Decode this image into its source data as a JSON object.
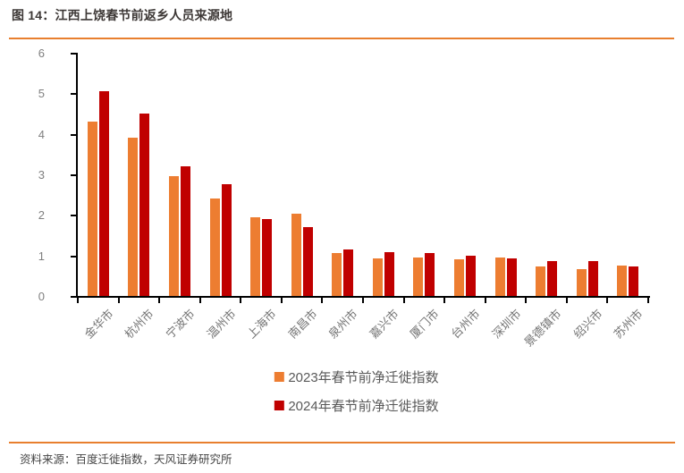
{
  "page": {
    "title": "图 14：江西上饶春节前返乡人员来源地",
    "source": "资料来源：百度迁徙指数，天风证券研究所"
  },
  "colors": {
    "accent_rule": "#e87f2e",
    "series_2023": "#ed7d31",
    "series_2024": "#c00000",
    "axis": "#000000",
    "tick_label": "#7f7f7f",
    "legend_text": "#595959"
  },
  "chart_data": {
    "type": "bar",
    "title": "图 14：江西上饶春节前返乡人员来源地",
    "categories": [
      "金华市",
      "杭州市",
      "宁波市",
      "温州市",
      "上海市",
      "南昌市",
      "泉州市",
      "嘉兴市",
      "厦门市",
      "台州市",
      "深圳市",
      "景德镇市",
      "绍兴市",
      "苏州市"
    ],
    "series": [
      {
        "name": "2023年春节前净迁徙指数",
        "color": "#ed7d31",
        "values": [
          4.3,
          3.9,
          2.95,
          2.4,
          1.95,
          2.02,
          1.05,
          0.93,
          0.95,
          0.91,
          0.95,
          0.73,
          0.66,
          0.75
        ]
      },
      {
        "name": "2024年春节前净迁徙指数",
        "color": "#c00000",
        "values": [
          5.05,
          4.5,
          3.2,
          2.75,
          1.9,
          1.7,
          1.15,
          1.08,
          1.05,
          1.0,
          0.92,
          0.85,
          0.86,
          0.73
        ]
      }
    ],
    "xlabel": "",
    "ylabel": "",
    "ylim": [
      0,
      6
    ],
    "yticks": [
      0,
      1,
      2,
      3,
      4,
      5,
      6
    ],
    "grid": false,
    "legend_position": "bottom"
  }
}
